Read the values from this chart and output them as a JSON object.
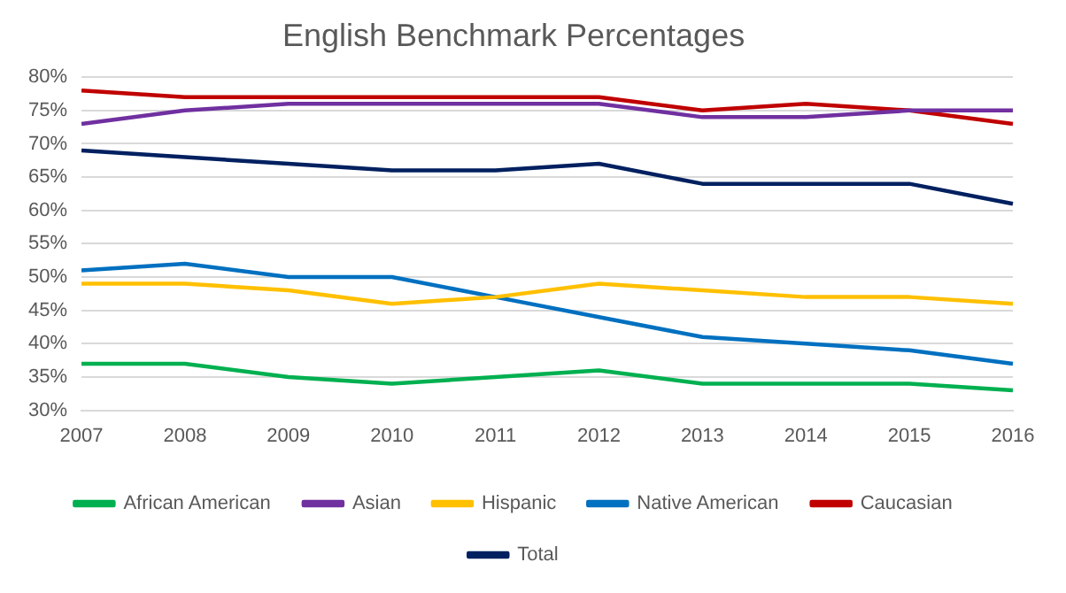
{
  "chart_data": {
    "type": "line",
    "title": "English Benchmark Percentages",
    "categories": [
      "2007",
      "2008",
      "2009",
      "2010",
      "2011",
      "2012",
      "2013",
      "2014",
      "2015",
      "2016"
    ],
    "series": [
      {
        "name": "African American",
        "color": "#00b050",
        "values": [
          37,
          37,
          35,
          34,
          35,
          36,
          34,
          34,
          34,
          33
        ]
      },
      {
        "name": "Asian",
        "color": "#7030a0",
        "values": [
          73,
          75,
          76,
          76,
          76,
          76,
          74,
          74,
          75,
          75
        ]
      },
      {
        "name": "Hispanic",
        "color": "#ffc000",
        "values": [
          49,
          49,
          48,
          46,
          47,
          49,
          48,
          47,
          47,
          46
        ]
      },
      {
        "name": "Native American",
        "color": "#0070c0",
        "values": [
          51,
          52,
          50,
          50,
          47,
          44,
          41,
          40,
          39,
          37
        ]
      },
      {
        "name": "Caucasian",
        "color": "#c00000",
        "values": [
          78,
          77,
          77,
          77,
          77,
          77,
          75,
          76,
          75,
          73
        ]
      },
      {
        "name": "Total",
        "color": "#002060",
        "values": [
          69,
          68,
          67,
          66,
          66,
          67,
          64,
          64,
          64,
          61
        ]
      }
    ],
    "ylim": [
      30,
      80
    ],
    "yticks": [
      {
        "value": 30,
        "label": "30%"
      },
      {
        "value": 35,
        "label": "35%"
      },
      {
        "value": 40,
        "label": "40%"
      },
      {
        "value": 45,
        "label": "45%"
      },
      {
        "value": 50,
        "label": "50%"
      },
      {
        "value": 55,
        "label": "55%"
      },
      {
        "value": 60,
        "label": "60%"
      },
      {
        "value": 65,
        "label": "65%"
      },
      {
        "value": 70,
        "label": "70%"
      },
      {
        "value": 75,
        "label": "75%"
      },
      {
        "value": 80,
        "label": "80%"
      }
    ],
    "grid": "y",
    "legend": "bottom",
    "marker": "none",
    "line_style": "solid"
  }
}
